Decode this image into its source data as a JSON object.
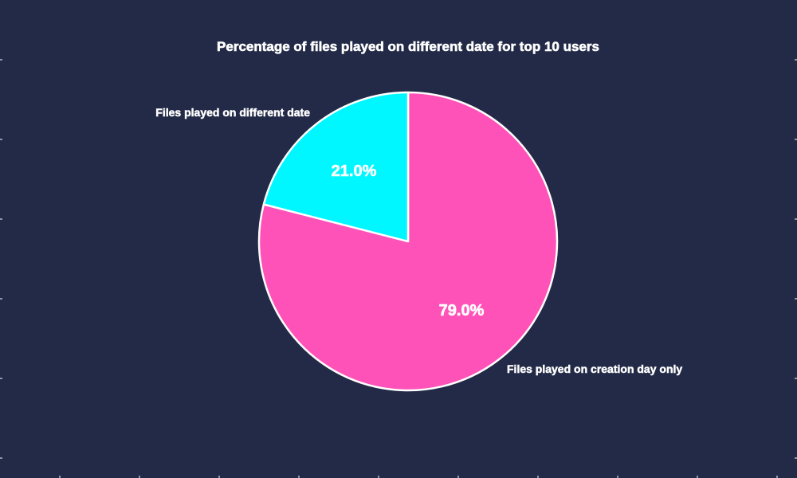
{
  "chart_data": {
    "type": "pie",
    "title": "Percentage of files played on different date for top 10 users",
    "slices": [
      {
        "label": "Files played on creation day only",
        "value": 79.0,
        "pct_label": "79.0%",
        "color": "#ff52b9"
      },
      {
        "label": "Files played on different date",
        "value": 21.0,
        "pct_label": "21.0%",
        "color": "#00f7ff"
      }
    ],
    "edge_color": "#ffffff",
    "background": "#222a47"
  }
}
